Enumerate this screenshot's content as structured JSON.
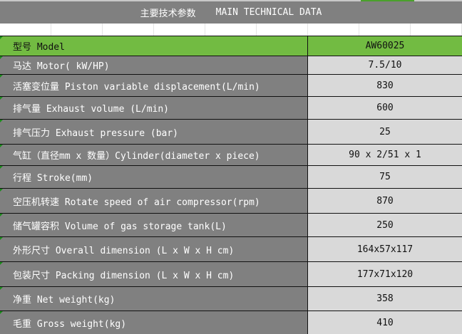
{
  "title": {
    "cn": "主要技术参数",
    "en": "MAIN TECHNICAL DATA"
  },
  "colors": {
    "header_gray": "#808080",
    "model_green": "#72bb42",
    "value_bg": "#d9d9d9"
  },
  "rows": [
    {
      "label": "型号 Model",
      "value": "AW60025"
    },
    {
      "label": "马达 Motor( kW/HP)",
      "value": "7.5/10"
    },
    {
      "label": "活塞变位量 Piston variable displacement(L/min)",
      "value": "830"
    },
    {
      "label": "排气量 Exhaust volume (L/min)",
      "value": "600"
    },
    {
      "label": "排气压力 Exhaust pressure (bar)",
      "value": "25"
    },
    {
      "label": "气缸（直径mm x 数量）Cylinder(diameter x piece)",
      "value": "90 x 2/51 x 1"
    },
    {
      "label": "行程 Stroke(mm)",
      "value": "75"
    },
    {
      "label": "空压机转速 Rotate speed of air compressor(rpm)",
      "value": "870"
    },
    {
      "label": "储气罐容积 Volume of gas storage tank(L)",
      "value": "250"
    },
    {
      "label": "外形尺寸 Overall dimension (L x W x H cm)",
      "value": "164x57x117"
    },
    {
      "label": "包装尺寸 Packing dimension (L x W x H cm)",
      "value": "177x71x120"
    },
    {
      "label": "净重 Net weight(kg)",
      "value": "358"
    },
    {
      "label": "毛重 Gross weight(kg)",
      "value": "410"
    }
  ]
}
